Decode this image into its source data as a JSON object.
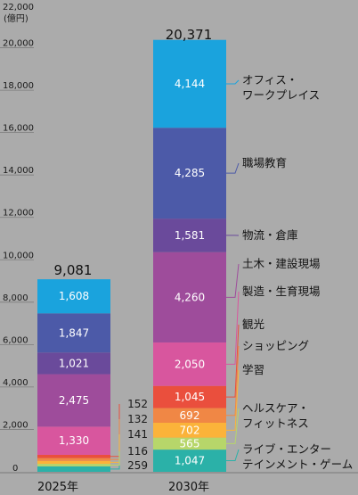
{
  "chart_data": {
    "type": "bar",
    "stacked": true,
    "unit": "(億円)",
    "categories": [
      "2025年",
      "2030年"
    ],
    "ylim": [
      0,
      22000
    ],
    "yticks": [
      "0",
      "2,000",
      "4,000",
      "6,000",
      "8,000",
      "10,000",
      "12,000",
      "14,000",
      "16,000",
      "18,000",
      "20,000",
      "22,000"
    ],
    "totals": [
      "9,081",
      "20,371"
    ],
    "total_values": [
      9081,
      20371
    ],
    "series": [
      {
        "name": "ライブ・エンターテインメント・ゲーム",
        "color": "#2bb1a8",
        "values": [
          259,
          1047
        ],
        "labels": [
          "259",
          "1,047"
        ]
      },
      {
        "name": "ヘルスケア・フィットネス",
        "color": "#b7d66a",
        "values": [
          116,
          565
        ],
        "labels": [
          "116",
          "565"
        ]
      },
      {
        "name": "学習",
        "color": "#fbb33a",
        "values": [
          141,
          702
        ],
        "labels": [
          "141",
          "702"
        ]
      },
      {
        "name": "ショッピング",
        "color": "#f08745",
        "values": [
          132,
          692
        ],
        "labels": [
          "132",
          "692"
        ]
      },
      {
        "name": "観光",
        "color": "#ea4f3d",
        "values": [
          152,
          1045
        ],
        "labels": [
          "152",
          "1,045"
        ]
      },
      {
        "name": "製造・生育現場",
        "color": "#d8569e",
        "values": [
          1330,
          2050
        ],
        "labels": [
          "1,330",
          "2,050"
        ]
      },
      {
        "name": "土木・建設現場",
        "color": "#9e4c9b",
        "values": [
          2475,
          4260
        ],
        "labels": [
          "2,475",
          "4,260"
        ]
      },
      {
        "name": "物流・倉庫",
        "color": "#6a4a9b",
        "values": [
          1021,
          1581
        ],
        "labels": [
          "1,021",
          "1,581"
        ]
      },
      {
        "name": "職場教育",
        "color": "#4c5aa8",
        "values": [
          1847,
          4285
        ],
        "labels": [
          "1,847",
          "4,285"
        ]
      },
      {
        "name": "オフィス・ワークプレイス",
        "color": "#1aa3dd",
        "values": [
          1608,
          4144
        ],
        "labels": [
          "1,608",
          "4,144"
        ]
      }
    ],
    "legend_lines": [
      [
        "オフィス・",
        "ワークプレイス"
      ],
      [
        "職場教育"
      ],
      [
        "物流・倉庫"
      ],
      [
        "土木・建設現場"
      ],
      [
        "製造・生育現場"
      ],
      [
        "観光"
      ],
      [
        "ショッピング"
      ],
      [
        "学習"
      ],
      [
        "ヘルスケア・",
        "フィットネス"
      ],
      [
        "ライブ・エンター",
        "テインメント・ゲーム"
      ]
    ]
  }
}
